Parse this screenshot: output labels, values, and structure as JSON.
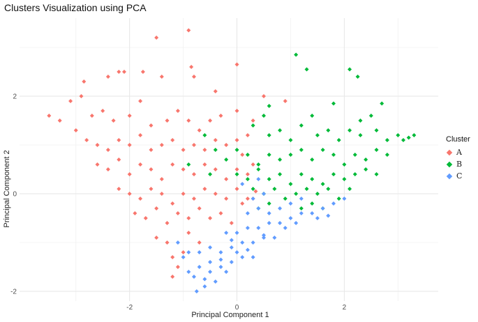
{
  "chart_data": {
    "type": "scatter",
    "title": "Clusters Visualization using PCA",
    "xlabel": "Principal Component 1",
    "ylabel": "Principal Component 2",
    "xlim": [
      -4.05,
      3.75
    ],
    "ylim": [
      -2.2,
      3.6
    ],
    "x_ticks": [
      -2,
      0,
      2
    ],
    "y_ticks": [
      -2,
      0,
      2
    ],
    "grid": true,
    "legend": {
      "title": "Cluster",
      "position": "right"
    },
    "series": [
      {
        "name": "A",
        "color": "#F8766D",
        "points": [
          [
            -3.5,
            1.6
          ],
          [
            -3.3,
            1.5
          ],
          [
            -3.1,
            1.9
          ],
          [
            -2.9,
            2.0
          ],
          [
            -2.85,
            2.3
          ],
          [
            -2.4,
            2.4
          ],
          [
            -2.2,
            2.5
          ],
          [
            -2.1,
            2.5
          ],
          [
            -1.75,
            2.5
          ],
          [
            -1.5,
            3.2
          ],
          [
            -1.4,
            2.4
          ],
          [
            -0.9,
            3.35
          ],
          [
            -0.85,
            2.6
          ],
          [
            -0.8,
            2.4
          ],
          [
            -0.4,
            2.1
          ],
          [
            0.0,
            2.65
          ],
          [
            -2.7,
            1.6
          ],
          [
            -2.5,
            1.7
          ],
          [
            -2.3,
            1.5
          ],
          [
            -2.0,
            1.6
          ],
          [
            -1.8,
            1.9
          ],
          [
            -1.6,
            1.4
          ],
          [
            -1.3,
            1.5
          ],
          [
            -1.1,
            1.7
          ],
          [
            -0.9,
            1.5
          ],
          [
            -0.7,
            1.3
          ],
          [
            -0.5,
            1.5
          ],
          [
            -0.3,
            1.6
          ],
          [
            0.0,
            1.7
          ],
          [
            0.3,
            1.5
          ],
          [
            0.5,
            2.0
          ],
          [
            0.9,
            1.9
          ],
          [
            -3.0,
            1.3
          ],
          [
            -2.8,
            1.1
          ],
          [
            -2.6,
            1.0
          ],
          [
            -2.4,
            0.9
          ],
          [
            -2.2,
            1.1
          ],
          [
            -2.0,
            1.0
          ],
          [
            -1.8,
            1.2
          ],
          [
            -1.6,
            0.9
          ],
          [
            -1.4,
            1.0
          ],
          [
            -1.2,
            1.1
          ],
          [
            -1.0,
            0.9
          ],
          [
            -0.8,
            1.0
          ],
          [
            -0.6,
            0.9
          ],
          [
            -0.4,
            1.1
          ],
          [
            -0.2,
            1.0
          ],
          [
            0.0,
            1.1
          ],
          [
            0.1,
            0.8
          ],
          [
            0.2,
            1.2
          ],
          [
            -2.6,
            0.6
          ],
          [
            -2.4,
            0.5
          ],
          [
            -2.2,
            0.7
          ],
          [
            -2.0,
            0.4
          ],
          [
            -1.8,
            0.6
          ],
          [
            -1.6,
            0.5
          ],
          [
            -1.4,
            0.3
          ],
          [
            -1.2,
            0.6
          ],
          [
            -1.0,
            0.5
          ],
          [
            -0.8,
            0.4
          ],
          [
            -0.6,
            0.6
          ],
          [
            -0.4,
            0.5
          ],
          [
            -0.2,
            0.3
          ],
          [
            0.0,
            0.5
          ],
          [
            0.2,
            0.4
          ],
          [
            0.3,
            0.6
          ],
          [
            -2.2,
            0.1
          ],
          [
            -2.0,
            0.0
          ],
          [
            -1.8,
            -0.1
          ],
          [
            -1.6,
            0.1
          ],
          [
            -1.4,
            0.0
          ],
          [
            -1.2,
            -0.2
          ],
          [
            -1.0,
            0.0
          ],
          [
            -0.8,
            -0.1
          ],
          [
            -0.6,
            0.1
          ],
          [
            -0.4,
            0.0
          ],
          [
            -0.2,
            -0.1
          ],
          [
            0.0,
            0.1
          ],
          [
            0.2,
            -0.1
          ],
          [
            0.35,
            0.05
          ],
          [
            -1.9,
            -0.4
          ],
          [
            -1.7,
            -0.5
          ],
          [
            -1.5,
            -0.3
          ],
          [
            -1.3,
            -0.6
          ],
          [
            -1.1,
            -0.4
          ],
          [
            -0.9,
            -0.5
          ],
          [
            -0.7,
            -0.3
          ],
          [
            -0.5,
            -0.5
          ],
          [
            -0.3,
            -0.4
          ],
          [
            -0.1,
            -0.6
          ],
          [
            -1.5,
            -0.9
          ],
          [
            -1.3,
            -1.0
          ],
          [
            -1.2,
            -1.3
          ],
          [
            -1.1,
            -1.5
          ],
          [
            -1.0,
            -1.2
          ],
          [
            -0.9,
            -0.8
          ],
          [
            -1.2,
            -1.7
          ],
          [
            -0.7,
            -1.0
          ],
          [
            0.1,
            -0.2
          ],
          [
            0.3,
            -0.1
          ]
        ]
      },
      {
        "name": "B",
        "color": "#00BA38",
        "points": [
          [
            1.1,
            2.85
          ],
          [
            1.3,
            2.55
          ],
          [
            2.1,
            2.55
          ],
          [
            2.25,
            2.4
          ],
          [
            1.8,
            1.85
          ],
          [
            2.7,
            1.85
          ],
          [
            0.5,
            1.6
          ],
          [
            0.6,
            1.8
          ],
          [
            1.4,
            1.6
          ],
          [
            2.3,
            1.5
          ],
          [
            2.5,
            1.6
          ],
          [
            0.3,
            1.4
          ],
          [
            0.6,
            1.2
          ],
          [
            0.8,
            1.3
          ],
          [
            1.0,
            1.1
          ],
          [
            1.2,
            1.4
          ],
          [
            1.5,
            1.2
          ],
          [
            1.7,
            1.3
          ],
          [
            1.9,
            1.1
          ],
          [
            2.1,
            1.3
          ],
          [
            2.3,
            1.2
          ],
          [
            2.6,
            1.3
          ],
          [
            2.8,
            1.1
          ],
          [
            3.0,
            1.2
          ],
          [
            3.1,
            1.1
          ],
          [
            3.2,
            1.15
          ],
          [
            3.3,
            1.2
          ],
          [
            -0.6,
            1.2
          ],
          [
            -0.4,
            0.9
          ],
          [
            -0.2,
            0.7
          ],
          [
            0.0,
            0.9
          ],
          [
            0.2,
            0.8
          ],
          [
            0.4,
            0.6
          ],
          [
            0.6,
            0.8
          ],
          [
            0.8,
            0.7
          ],
          [
            1.0,
            0.8
          ],
          [
            1.2,
            0.9
          ],
          [
            1.4,
            0.7
          ],
          [
            1.6,
            0.9
          ],
          [
            1.8,
            0.8
          ],
          [
            2.0,
            0.6
          ],
          [
            2.2,
            0.8
          ],
          [
            2.4,
            0.7
          ],
          [
            2.6,
            0.9
          ],
          [
            2.8,
            0.8
          ],
          [
            0.0,
            0.4
          ],
          [
            0.2,
            0.3
          ],
          [
            0.4,
            0.5
          ],
          [
            0.6,
            0.3
          ],
          [
            0.8,
            0.4
          ],
          [
            1.0,
            0.2
          ],
          [
            1.2,
            0.4
          ],
          [
            1.4,
            0.3
          ],
          [
            1.6,
            0.2
          ],
          [
            1.8,
            0.4
          ],
          [
            2.0,
            0.3
          ],
          [
            2.2,
            0.4
          ],
          [
            2.4,
            0.5
          ],
          [
            2.6,
            0.4
          ],
          [
            0.3,
            0.1
          ],
          [
            0.5,
            0.0
          ],
          [
            0.7,
            0.1
          ],
          [
            0.9,
            -0.1
          ],
          [
            1.1,
            0.0
          ],
          [
            1.3,
            0.1
          ],
          [
            1.5,
            0.0
          ],
          [
            1.7,
            0.1
          ],
          [
            1.9,
            -0.1
          ],
          [
            2.1,
            0.1
          ],
          [
            0.4,
            -0.3
          ],
          [
            0.6,
            -0.2
          ],
          [
            1.2,
            -0.3
          ],
          [
            1.4,
            -0.2
          ],
          [
            1.6,
            -0.3
          ],
          [
            -0.9,
            0.6
          ],
          [
            -0.5,
            0.4
          ]
        ]
      },
      {
        "name": "C",
        "color": "#619CFF",
        "points": [
          [
            -0.75,
            -2.0
          ],
          [
            -0.6,
            -1.9
          ],
          [
            -0.4,
            -1.8
          ],
          [
            -0.2,
            -1.6
          ],
          [
            -0.9,
            -1.6
          ],
          [
            -0.7,
            -1.5
          ],
          [
            -0.5,
            -1.4
          ],
          [
            -0.3,
            -1.5
          ],
          [
            -0.1,
            -1.4
          ],
          [
            0.1,
            -1.3
          ],
          [
            0.3,
            -1.3
          ],
          [
            -0.9,
            -1.2
          ],
          [
            -0.7,
            -1.2
          ],
          [
            -0.5,
            -1.1
          ],
          [
            -0.3,
            -1.2
          ],
          [
            -0.1,
            -1.1
          ],
          [
            0.1,
            -1.0
          ],
          [
            0.3,
            -1.0
          ],
          [
            0.5,
            -0.9
          ],
          [
            0.7,
            -0.9
          ],
          [
            -0.2,
            -0.8
          ],
          [
            0.0,
            -0.8
          ],
          [
            0.2,
            -0.7
          ],
          [
            0.4,
            -0.7
          ],
          [
            0.6,
            -0.6
          ],
          [
            0.8,
            -0.6
          ],
          [
            1.0,
            -0.5
          ],
          [
            1.2,
            -0.4
          ],
          [
            1.4,
            -0.4
          ],
          [
            1.6,
            -0.3
          ],
          [
            1.8,
            -0.2
          ],
          [
            2.0,
            -0.1
          ],
          [
            0.2,
            -0.4
          ],
          [
            0.4,
            -0.3
          ],
          [
            0.6,
            -0.4
          ],
          [
            0.8,
            -0.3
          ],
          [
            1.0,
            -0.2
          ],
          [
            1.2,
            -0.1
          ],
          [
            0.3,
            -0.1
          ],
          [
            0.5,
            0.0
          ],
          [
            0.1,
            0.2
          ],
          [
            0.4,
            0.3
          ],
          [
            -1.1,
            -1.0
          ],
          [
            -1.0,
            -1.3
          ],
          [
            -0.8,
            -1.7
          ],
          [
            -0.6,
            -1.75
          ],
          [
            0.9,
            -0.7
          ],
          [
            1.1,
            -0.6
          ],
          [
            1.5,
            -0.5
          ],
          [
            1.7,
            -0.45
          ],
          [
            -0.5,
            -1.6
          ],
          [
            -0.3,
            -1.35
          ],
          [
            0.0,
            -1.2
          ],
          [
            0.2,
            -1.15
          ],
          [
            -0.1,
            -0.95
          ],
          [
            0.5,
            -0.85
          ]
        ]
      }
    ]
  }
}
